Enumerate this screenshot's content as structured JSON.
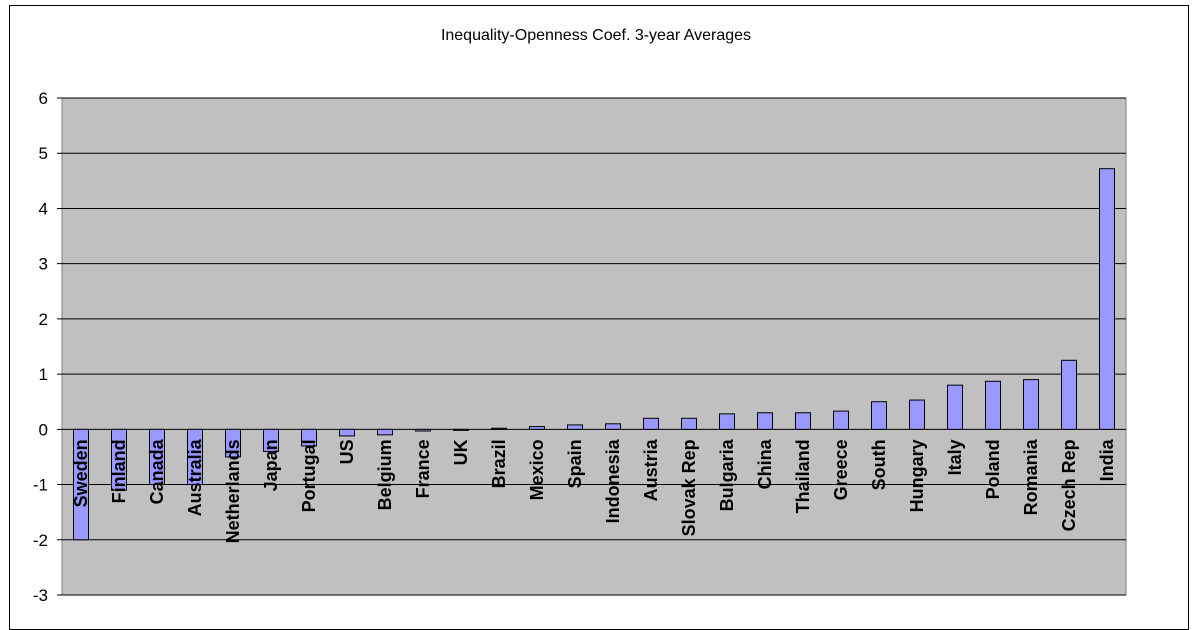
{
  "chart_data": {
    "type": "bar",
    "title": "Inequality-Openness Coef. 3-year Averages",
    "xlabel": "",
    "ylabel": "",
    "ylim": [
      -3,
      6
    ],
    "yticks": [
      "6",
      "5",
      "4",
      "3",
      "2",
      "1",
      "0",
      "-1",
      "-2",
      "-3"
    ],
    "grid": true,
    "legend": "none",
    "colors": {
      "plot_background": "#c0c0c0",
      "bar_fill": "#9999ff",
      "bar_stroke": "#000000",
      "gridline": "#000000"
    },
    "categories": [
      "Sweden",
      "Finland",
      "Canada",
      "Australia",
      "Netherlands",
      "Japan",
      "Portugal",
      "US",
      "Belgium",
      "France",
      "UK",
      "Brazil",
      "Mexico",
      "Spain",
      "Indonesia",
      "Austria",
      "Slovak Rep",
      "Bulgaria",
      "China",
      "Thailand",
      "Greece",
      "South",
      "Hungary",
      "Italy",
      "Poland",
      "Romania",
      "Czech Rep",
      "India"
    ],
    "values": [
      -2.0,
      -1.1,
      -1.0,
      -1.0,
      -0.5,
      -0.4,
      -0.3,
      -0.12,
      -0.1,
      -0.03,
      0.0,
      0.02,
      0.05,
      0.08,
      0.1,
      0.2,
      0.2,
      0.28,
      0.3,
      0.3,
      0.33,
      0.5,
      0.53,
      0.8,
      0.87,
      0.9,
      1.25,
      4.72
    ]
  }
}
